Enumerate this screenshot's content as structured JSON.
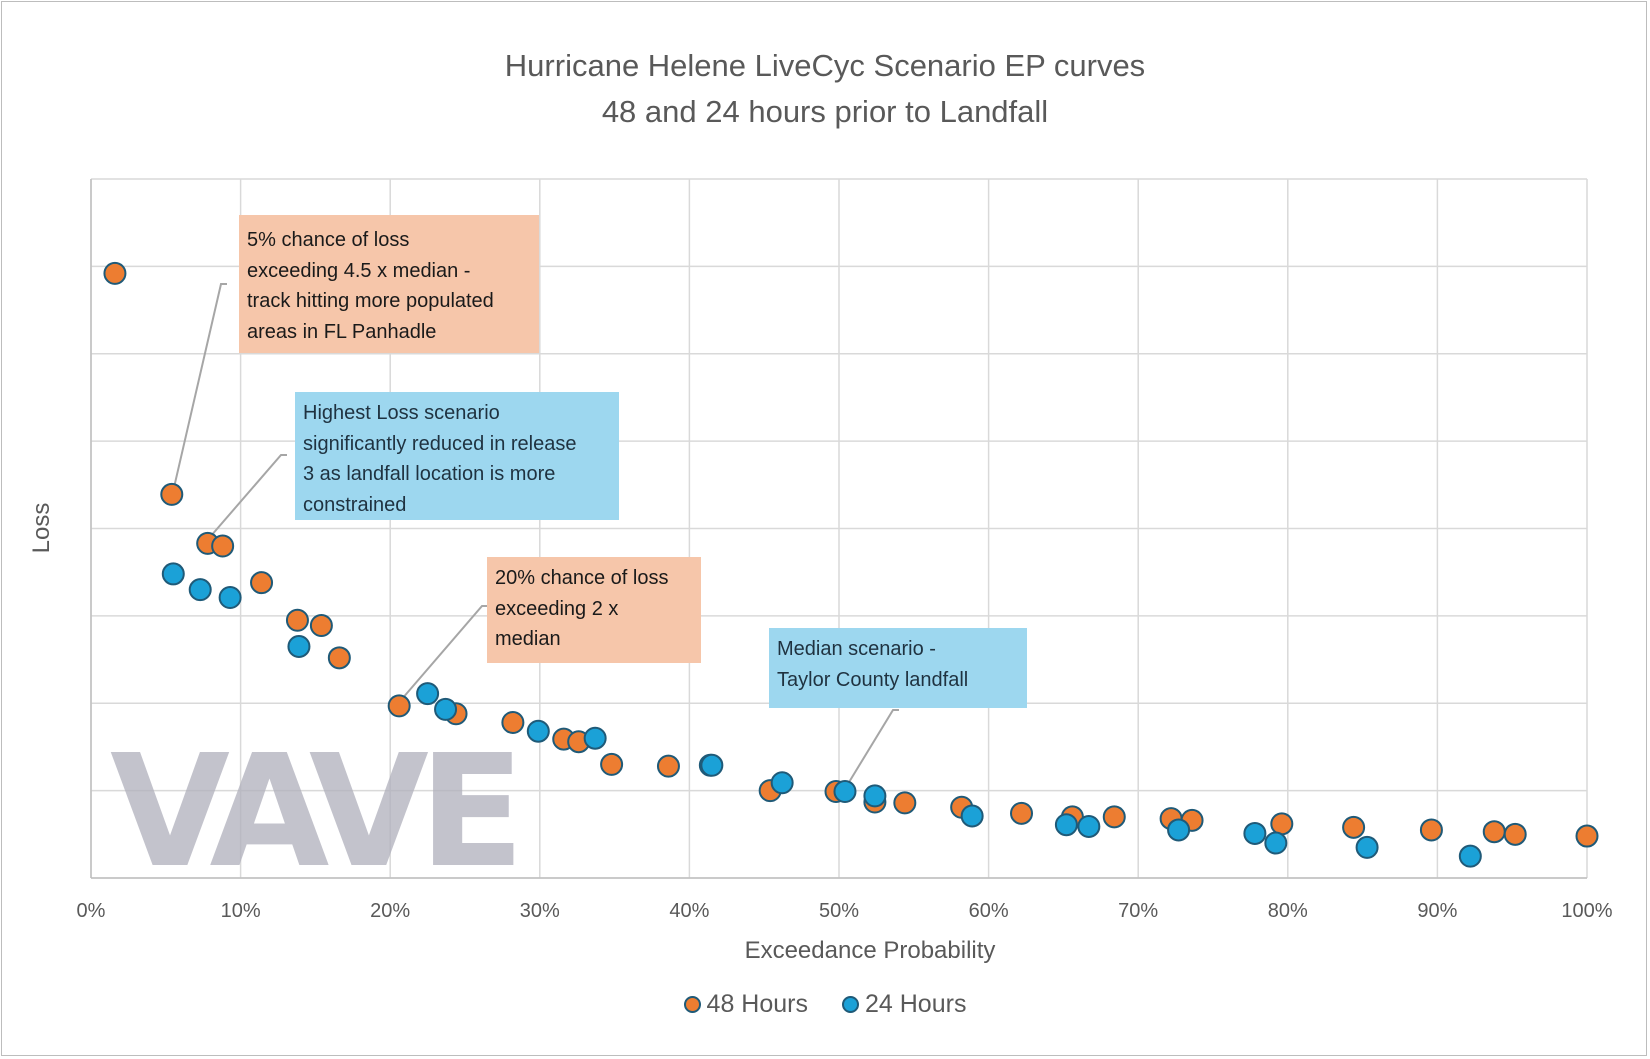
{
  "chart_data": {
    "type": "scatter",
    "title": "Hurricane Helene LiveCyc Scenario EP curves",
    "subtitle": "48 and 24 hours prior to Landfall",
    "xlabel": "Exceedance Probability",
    "ylabel": "Loss",
    "xlim": [
      0,
      1
    ],
    "ylim": [
      0,
      8
    ],
    "x_ticks": [
      "0%",
      "10%",
      "20%",
      "30%",
      "40%",
      "50%",
      "60%",
      "70%",
      "80%",
      "90%",
      "100%"
    ],
    "grid": true,
    "legend_position": "bottom",
    "series": [
      {
        "name": "48 Hours",
        "color": "#ed7d31",
        "points": [
          [
            0.016,
            6.92
          ],
          [
            0.054,
            4.39
          ],
          [
            0.078,
            3.83
          ],
          [
            0.088,
            3.8
          ],
          [
            0.114,
            3.38
          ],
          [
            0.138,
            2.95
          ],
          [
            0.154,
            2.89
          ],
          [
            0.166,
            2.52
          ],
          [
            0.206,
            1.97
          ],
          [
            0.244,
            1.88
          ],
          [
            0.282,
            1.78
          ],
          [
            0.316,
            1.59
          ],
          [
            0.326,
            1.56
          ],
          [
            0.348,
            1.3
          ],
          [
            0.386,
            1.28
          ],
          [
            0.414,
            1.29
          ],
          [
            0.454,
            1.0
          ],
          [
            0.498,
            0.99
          ],
          [
            0.524,
            0.87
          ],
          [
            0.544,
            0.86
          ],
          [
            0.582,
            0.81
          ],
          [
            0.622,
            0.74
          ],
          [
            0.656,
            0.7
          ],
          [
            0.684,
            0.7
          ],
          [
            0.722,
            0.68
          ],
          [
            0.736,
            0.66
          ],
          [
            0.796,
            0.62
          ],
          [
            0.844,
            0.58
          ],
          [
            0.896,
            0.55
          ],
          [
            0.938,
            0.53
          ],
          [
            0.952,
            0.5
          ],
          [
            1.0,
            0.48
          ]
        ]
      },
      {
        "name": "24 Hours",
        "color": "#1ba1d7",
        "points": [
          [
            0.055,
            3.48
          ],
          [
            0.073,
            3.3
          ],
          [
            0.093,
            3.21
          ],
          [
            0.139,
            2.65
          ],
          [
            0.225,
            2.11
          ],
          [
            0.237,
            1.93
          ],
          [
            0.299,
            1.68
          ],
          [
            0.337,
            1.6
          ],
          [
            0.415,
            1.29
          ],
          [
            0.462,
            1.09
          ],
          [
            0.504,
            0.99
          ],
          [
            0.524,
            0.94
          ],
          [
            0.589,
            0.71
          ],
          [
            0.652,
            0.61
          ],
          [
            0.667,
            0.59
          ],
          [
            0.727,
            0.55
          ],
          [
            0.778,
            0.51
          ],
          [
            0.792,
            0.4
          ],
          [
            0.853,
            0.35
          ],
          [
            0.922,
            0.25
          ]
        ]
      }
    ],
    "annotations": [
      {
        "text": "5% chance of loss exceeding 4.5 x median - track hitting more populated areas in FL Panhadle",
        "color": "#f6c6aa",
        "target": [
          0.054,
          4.39
        ]
      },
      {
        "text": "Highest Loss scenario significantly reduced in release 3 as landfall location is more constrained",
        "color": "#9dd7ef",
        "target": [
          0.078,
          3.83
        ]
      },
      {
        "text": "20% chance of loss exceeding 2 x median",
        "color": "#f6c6aa",
        "target": [
          0.206,
          1.97
        ]
      },
      {
        "text": "Median scenario - Taylor County landfall",
        "color": "#9dd7ef",
        "target": [
          0.504,
          0.99
        ]
      }
    ]
  },
  "notes": {
    "n1": [
      "5% chance of loss",
      "exceeding 4.5 x median -",
      "track hitting more populated",
      "areas in FL Panhadle"
    ],
    "n2": [
      "Highest Loss scenario",
      "significantly reduced in release",
      "3 as landfall location is more",
      "constrained"
    ],
    "n3": [
      "20% chance of loss",
      "exceeding 2 x",
      "median"
    ],
    "n4": [
      "Median scenario -",
      "Taylor County landfall"
    ]
  },
  "watermark": "VAVE",
  "colors": {
    "orange": "#ed7d31",
    "blue": "#1ba1d7",
    "marker_border": "#1f5a78",
    "grid": "#d9d9d9"
  }
}
